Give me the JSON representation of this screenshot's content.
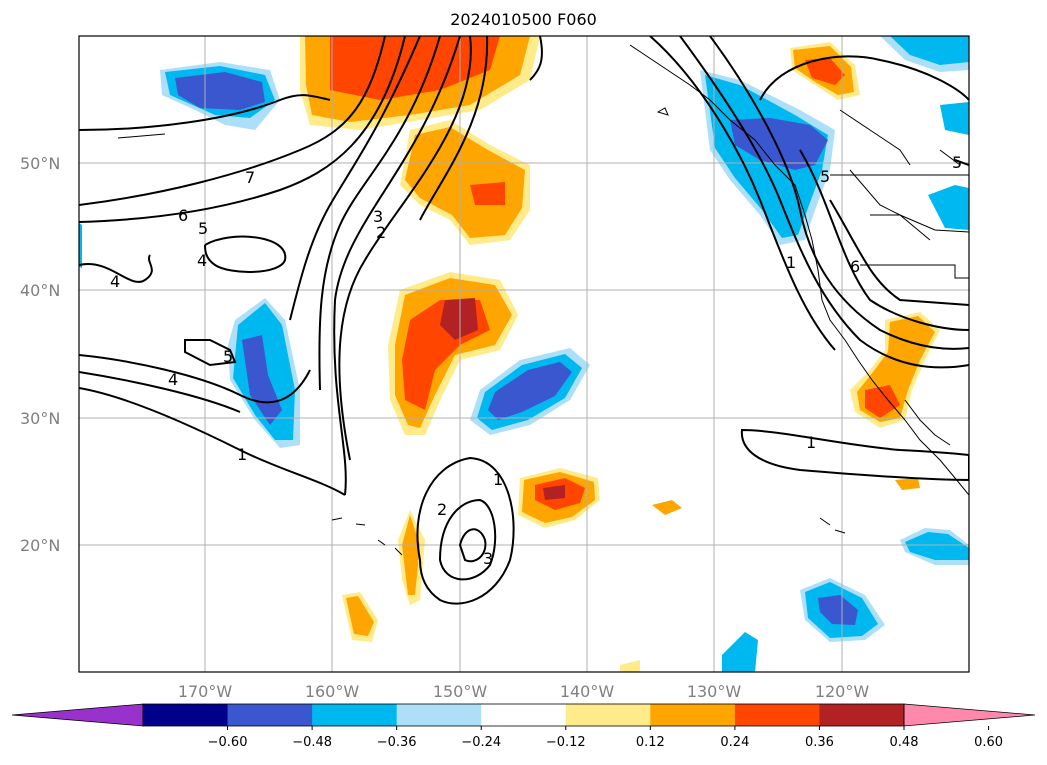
{
  "title": "2024010500 F060",
  "map": {
    "lat_ticks": [
      "50°N",
      "40°N",
      "30°N",
      "20°N"
    ],
    "lon_ticks": [
      "170°W",
      "160°W",
      "150°W",
      "140°W",
      "130°W",
      "120°W"
    ],
    "contour_labels": [
      "7",
      "6",
      "5",
      "4",
      "4",
      "4",
      "5",
      "3",
      "2",
      "1",
      "1",
      "2",
      "3",
      "1",
      "5",
      "6",
      "1",
      "5"
    ]
  },
  "colorbar": {
    "ticks": [
      "−0.60",
      "−0.48",
      "−0.36",
      "−0.24",
      "−0.12",
      "0.12",
      "0.24",
      "0.36",
      "0.48",
      "0.60"
    ],
    "colors": [
      "#9932CC",
      "#00008B",
      "#3A57D0",
      "#00B8F0",
      "#ADE0F8",
      "#FFFFFF",
      "#FFEB8A",
      "#FFA500",
      "#FF4500",
      "#B22222",
      "#FF89AD"
    ]
  }
}
